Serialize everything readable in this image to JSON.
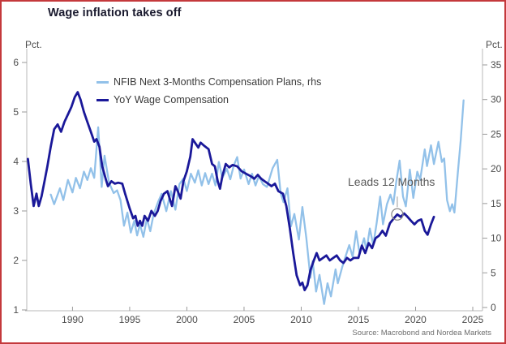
{
  "window": {
    "border_color": "#c4393c",
    "background": "#ffffff"
  },
  "title": "Wage inflation takes off",
  "annotation": {
    "text": "Leads 12 Months"
  },
  "source": "Source: Macrobond and Nordea Markets",
  "chart_data": {
    "type": "line",
    "title": "Wage inflation takes off",
    "grid": false,
    "legend_position": "top-left-inside",
    "x_axis": {
      "range": [
        1986.0,
        2025.85
      ],
      "ticks": [
        1990,
        1995,
        2000,
        2005,
        2010,
        2015,
        2020,
        2025
      ]
    },
    "left_axis": {
      "label": "Pct.",
      "ticks": [
        1,
        2,
        3,
        4,
        5,
        6
      ],
      "tick_color": "#4d4d4d"
    },
    "right_axis": {
      "label": "Pct.",
      "ticks": [
        0,
        5,
        10,
        15,
        20,
        25,
        30,
        35
      ],
      "tick_color": "#4d4d4d"
    },
    "annotation": {
      "text": "Leads 12 Months",
      "attach_series": "YoY Wage Compensation",
      "attach_x": 2018.4,
      "attach_y": 2.93
    },
    "series": [
      {
        "name": "NFIB Next 3-Months Compensation Plans, rhs",
        "axis": "right",
        "color": "#92c1e9",
        "line_width": 2.3,
        "points": [
          [
            1988.1,
            16.3
          ],
          [
            1988.4,
            14.9
          ],
          [
            1988.9,
            17.2
          ],
          [
            1989.2,
            15.5
          ],
          [
            1989.6,
            18.4
          ],
          [
            1990.0,
            16.6
          ],
          [
            1990.3,
            18.7
          ],
          [
            1990.65,
            17.2
          ],
          [
            1991.0,
            19.6
          ],
          [
            1991.3,
            18.4
          ],
          [
            1991.6,
            20.1
          ],
          [
            1991.9,
            18.7
          ],
          [
            1992.25,
            26.0
          ],
          [
            1992.55,
            17.4
          ],
          [
            1992.8,
            21.9
          ],
          [
            1993.2,
            18.0
          ],
          [
            1993.6,
            16.5
          ],
          [
            1993.9,
            16.9
          ],
          [
            1994.2,
            15.5
          ],
          [
            1994.5,
            11.8
          ],
          [
            1994.8,
            13.7
          ],
          [
            1995.1,
            10.8
          ],
          [
            1995.4,
            12.5
          ],
          [
            1995.65,
            10.4
          ],
          [
            1995.9,
            12.0
          ],
          [
            1996.2,
            10.2
          ],
          [
            1996.5,
            12.8
          ],
          [
            1996.8,
            11.0
          ],
          [
            1997.1,
            13.5
          ],
          [
            1997.5,
            15.3
          ],
          [
            1997.8,
            16.4
          ],
          [
            1998.2,
            13.9
          ],
          [
            1998.6,
            16.8
          ],
          [
            1999.0,
            14.1
          ],
          [
            1999.35,
            17.8
          ],
          [
            1999.7,
            18.6
          ],
          [
            2000.0,
            16.8
          ],
          [
            2000.35,
            19.3
          ],
          [
            2000.7,
            18.0
          ],
          [
            2001.0,
            19.8
          ],
          [
            2001.3,
            17.6
          ],
          [
            2001.6,
            19.4
          ],
          [
            2001.9,
            17.8
          ],
          [
            2002.2,
            19.3
          ],
          [
            2002.5,
            17.6
          ],
          [
            2002.8,
            21.0
          ],
          [
            2003.1,
            18.7
          ],
          [
            2003.5,
            20.0
          ],
          [
            2003.8,
            18.5
          ],
          [
            2004.1,
            20.5
          ],
          [
            2004.4,
            21.7
          ],
          [
            2004.7,
            18.6
          ],
          [
            2005.0,
            19.9
          ],
          [
            2005.4,
            17.8
          ],
          [
            2005.7,
            19.3
          ],
          [
            2006.0,
            17.6
          ],
          [
            2006.3,
            19.0
          ],
          [
            2006.65,
            17.8
          ],
          [
            2007.0,
            17.4
          ],
          [
            2007.5,
            20.1
          ],
          [
            2007.9,
            21.3
          ],
          [
            2008.2,
            16.5
          ],
          [
            2008.45,
            15.2
          ],
          [
            2008.8,
            17.2
          ],
          [
            2009.1,
            11.7
          ],
          [
            2009.4,
            13.5
          ],
          [
            2009.8,
            9.8
          ],
          [
            2010.1,
            14.5
          ],
          [
            2010.45,
            10.0
          ],
          [
            2010.8,
            4.3
          ],
          [
            2011.0,
            6.7
          ],
          [
            2011.3,
            2.3
          ],
          [
            2011.6,
            4.7
          ],
          [
            2012.0,
            0.5
          ],
          [
            2012.3,
            3.5
          ],
          [
            2012.6,
            1.6
          ],
          [
            2013.0,
            5.5
          ],
          [
            2013.2,
            3.5
          ],
          [
            2013.6,
            5.9
          ],
          [
            2013.9,
            7.5
          ],
          [
            2014.2,
            9.0
          ],
          [
            2014.5,
            7.3
          ],
          [
            2014.8,
            11.0
          ],
          [
            2015.1,
            7.8
          ],
          [
            2015.5,
            10.0
          ],
          [
            2015.7,
            8.2
          ],
          [
            2016.0,
            11.4
          ],
          [
            2016.3,
            9.0
          ],
          [
            2016.6,
            12.2
          ],
          [
            2016.9,
            16.0
          ],
          [
            2017.15,
            12.0
          ],
          [
            2017.5,
            14.9
          ],
          [
            2017.8,
            16.3
          ],
          [
            2018.05,
            14.9
          ],
          [
            2018.3,
            18.0
          ],
          [
            2018.6,
            21.2
          ],
          [
            2018.9,
            16.0
          ],
          [
            2019.15,
            14.6
          ],
          [
            2019.5,
            19.9
          ],
          [
            2019.8,
            15.8
          ],
          [
            2020.15,
            19.6
          ],
          [
            2020.4,
            18.4
          ],
          [
            2020.8,
            22.8
          ],
          [
            2021.0,
            20.4
          ],
          [
            2021.35,
            23.4
          ],
          [
            2021.6,
            20.7
          ],
          [
            2022.0,
            23.9
          ],
          [
            2022.3,
            21.0
          ],
          [
            2022.5,
            21.5
          ],
          [
            2022.75,
            15.5
          ],
          [
            2023.0,
            13.9
          ],
          [
            2023.2,
            14.9
          ],
          [
            2023.4,
            13.7
          ],
          [
            2023.7,
            19.6
          ],
          [
            2023.95,
            24.2
          ],
          [
            2024.2,
            29.9
          ]
        ]
      },
      {
        "name": "YoY Wage Compensation",
        "axis": "left",
        "color": "#1a1899",
        "line_width": 2.8,
        "points": [
          [
            1986.1,
            4.05
          ],
          [
            1986.35,
            3.55
          ],
          [
            1986.6,
            3.1
          ],
          [
            1986.85,
            3.35
          ],
          [
            1987.05,
            3.1
          ],
          [
            1987.3,
            3.3
          ],
          [
            1987.55,
            3.6
          ],
          [
            1987.8,
            3.9
          ],
          [
            1988.1,
            4.3
          ],
          [
            1988.4,
            4.65
          ],
          [
            1988.7,
            4.75
          ],
          [
            1989.0,
            4.6
          ],
          [
            1989.3,
            4.8
          ],
          [
            1989.6,
            4.95
          ],
          [
            1989.9,
            5.1
          ],
          [
            1990.2,
            5.3
          ],
          [
            1990.45,
            5.4
          ],
          [
            1990.7,
            5.25
          ],
          [
            1991.0,
            5.0
          ],
          [
            1991.3,
            4.8
          ],
          [
            1991.6,
            4.6
          ],
          [
            1991.9,
            4.4
          ],
          [
            1992.1,
            4.45
          ],
          [
            1992.35,
            4.3
          ],
          [
            1992.6,
            3.9
          ],
          [
            1992.9,
            3.65
          ],
          [
            1993.1,
            3.5
          ],
          [
            1993.4,
            3.6
          ],
          [
            1993.7,
            3.55
          ],
          [
            1994.0,
            3.57
          ],
          [
            1994.35,
            3.55
          ],
          [
            1994.6,
            3.35
          ],
          [
            1995.0,
            3.05
          ],
          [
            1995.3,
            2.85
          ],
          [
            1995.5,
            2.9
          ],
          [
            1995.7,
            2.7
          ],
          [
            1995.9,
            2.8
          ],
          [
            1996.1,
            2.7
          ],
          [
            1996.3,
            2.9
          ],
          [
            1996.6,
            2.8
          ],
          [
            1996.9,
            3.0
          ],
          [
            1997.2,
            2.9
          ],
          [
            1997.45,
            3.0
          ],
          [
            1997.7,
            3.2
          ],
          [
            1998.0,
            3.35
          ],
          [
            1998.3,
            3.4
          ],
          [
            1998.5,
            3.25
          ],
          [
            1998.7,
            3.1
          ],
          [
            1999.0,
            3.5
          ],
          [
            1999.2,
            3.4
          ],
          [
            1999.45,
            3.25
          ],
          [
            1999.7,
            3.6
          ],
          [
            2000.0,
            3.8
          ],
          [
            2000.3,
            4.1
          ],
          [
            2000.5,
            4.45
          ],
          [
            2000.8,
            4.35
          ],
          [
            2001.0,
            4.28
          ],
          [
            2001.2,
            4.38
          ],
          [
            2001.5,
            4.32
          ],
          [
            2001.9,
            4.25
          ],
          [
            2002.2,
            3.95
          ],
          [
            2002.45,
            3.9
          ],
          [
            2002.7,
            3.6
          ],
          [
            2002.9,
            3.45
          ],
          [
            2003.1,
            3.7
          ],
          [
            2003.4,
            3.95
          ],
          [
            2003.7,
            3.88
          ],
          [
            2004.0,
            3.93
          ],
          [
            2004.4,
            3.9
          ],
          [
            2004.8,
            3.8
          ],
          [
            2005.2,
            3.75
          ],
          [
            2005.6,
            3.7
          ],
          [
            2005.9,
            3.65
          ],
          [
            2006.2,
            3.73
          ],
          [
            2006.5,
            3.65
          ],
          [
            2006.8,
            3.6
          ],
          [
            2007.1,
            3.55
          ],
          [
            2007.4,
            3.5
          ],
          [
            2007.7,
            3.55
          ],
          [
            2008.0,
            3.4
          ],
          [
            2008.4,
            3.35
          ],
          [
            2008.7,
            3.1
          ],
          [
            2009.0,
            2.65
          ],
          [
            2009.3,
            2.15
          ],
          [
            2009.6,
            1.7
          ],
          [
            2009.9,
            1.5
          ],
          [
            2010.1,
            1.55
          ],
          [
            2010.3,
            1.4
          ],
          [
            2010.55,
            1.5
          ],
          [
            2010.8,
            1.8
          ],
          [
            2011.1,
            2.0
          ],
          [
            2011.35,
            2.15
          ],
          [
            2011.6,
            2.0
          ],
          [
            2011.9,
            2.05
          ],
          [
            2012.2,
            2.1
          ],
          [
            2012.5,
            2.0
          ],
          [
            2012.8,
            2.05
          ],
          [
            2013.1,
            2.1
          ],
          [
            2013.4,
            2.0
          ],
          [
            2013.7,
            1.95
          ],
          [
            2014.0,
            2.05
          ],
          [
            2014.3,
            2.0
          ],
          [
            2014.6,
            2.05
          ],
          [
            2015.0,
            2.05
          ],
          [
            2015.3,
            2.3
          ],
          [
            2015.6,
            2.15
          ],
          [
            2015.9,
            2.35
          ],
          [
            2016.2,
            2.25
          ],
          [
            2016.5,
            2.45
          ],
          [
            2016.8,
            2.5
          ],
          [
            2017.1,
            2.6
          ],
          [
            2017.4,
            2.5
          ],
          [
            2017.75,
            2.75
          ],
          [
            2018.1,
            2.85
          ],
          [
            2018.4,
            2.93
          ],
          [
            2018.7,
            2.88
          ],
          [
            2019.0,
            2.95
          ],
          [
            2019.3,
            2.88
          ],
          [
            2019.6,
            2.8
          ],
          [
            2019.9,
            2.73
          ],
          [
            2020.2,
            2.8
          ],
          [
            2020.5,
            2.83
          ],
          [
            2020.8,
            2.6
          ],
          [
            2021.05,
            2.52
          ],
          [
            2021.35,
            2.73
          ],
          [
            2021.6,
            2.88
          ]
        ]
      }
    ]
  }
}
